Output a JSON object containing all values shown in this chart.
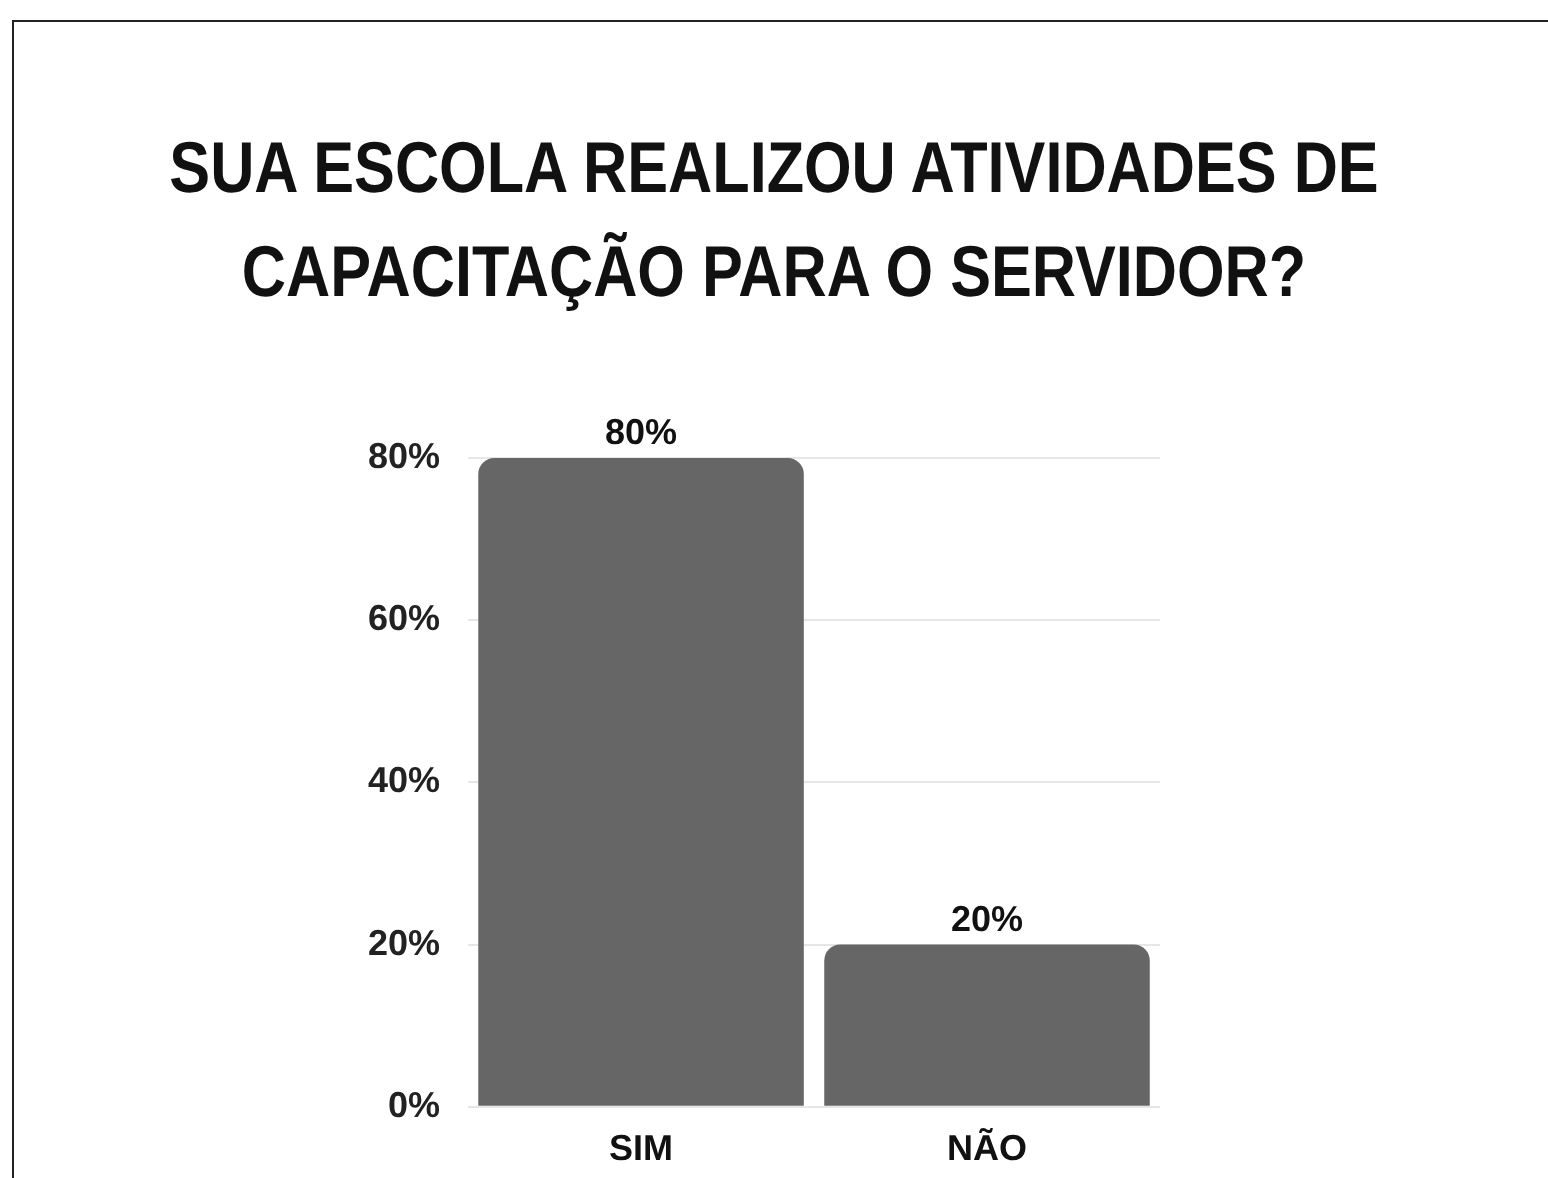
{
  "chart_data": {
    "type": "bar",
    "title": "SUA ESCOLA REALIZOU ATIVIDADES DE\nCAPACITAÇÃO PARA O SERVIDOR?",
    "categories": [
      "SIM",
      "NÃO"
    ],
    "values": [
      80,
      20
    ],
    "color": "#666666",
    "value_labels": [
      "80%",
      "20%"
    ],
    "ylim": [
      0,
      80
    ],
    "yticks": [
      {
        "value": 0,
        "label": "0%"
      },
      {
        "value": 20,
        "label": "20%"
      },
      {
        "value": 40,
        "label": "40%"
      },
      {
        "value": 60,
        "label": "60%"
      },
      {
        "value": 80,
        "label": "80%"
      }
    ],
    "grid": "y"
  }
}
